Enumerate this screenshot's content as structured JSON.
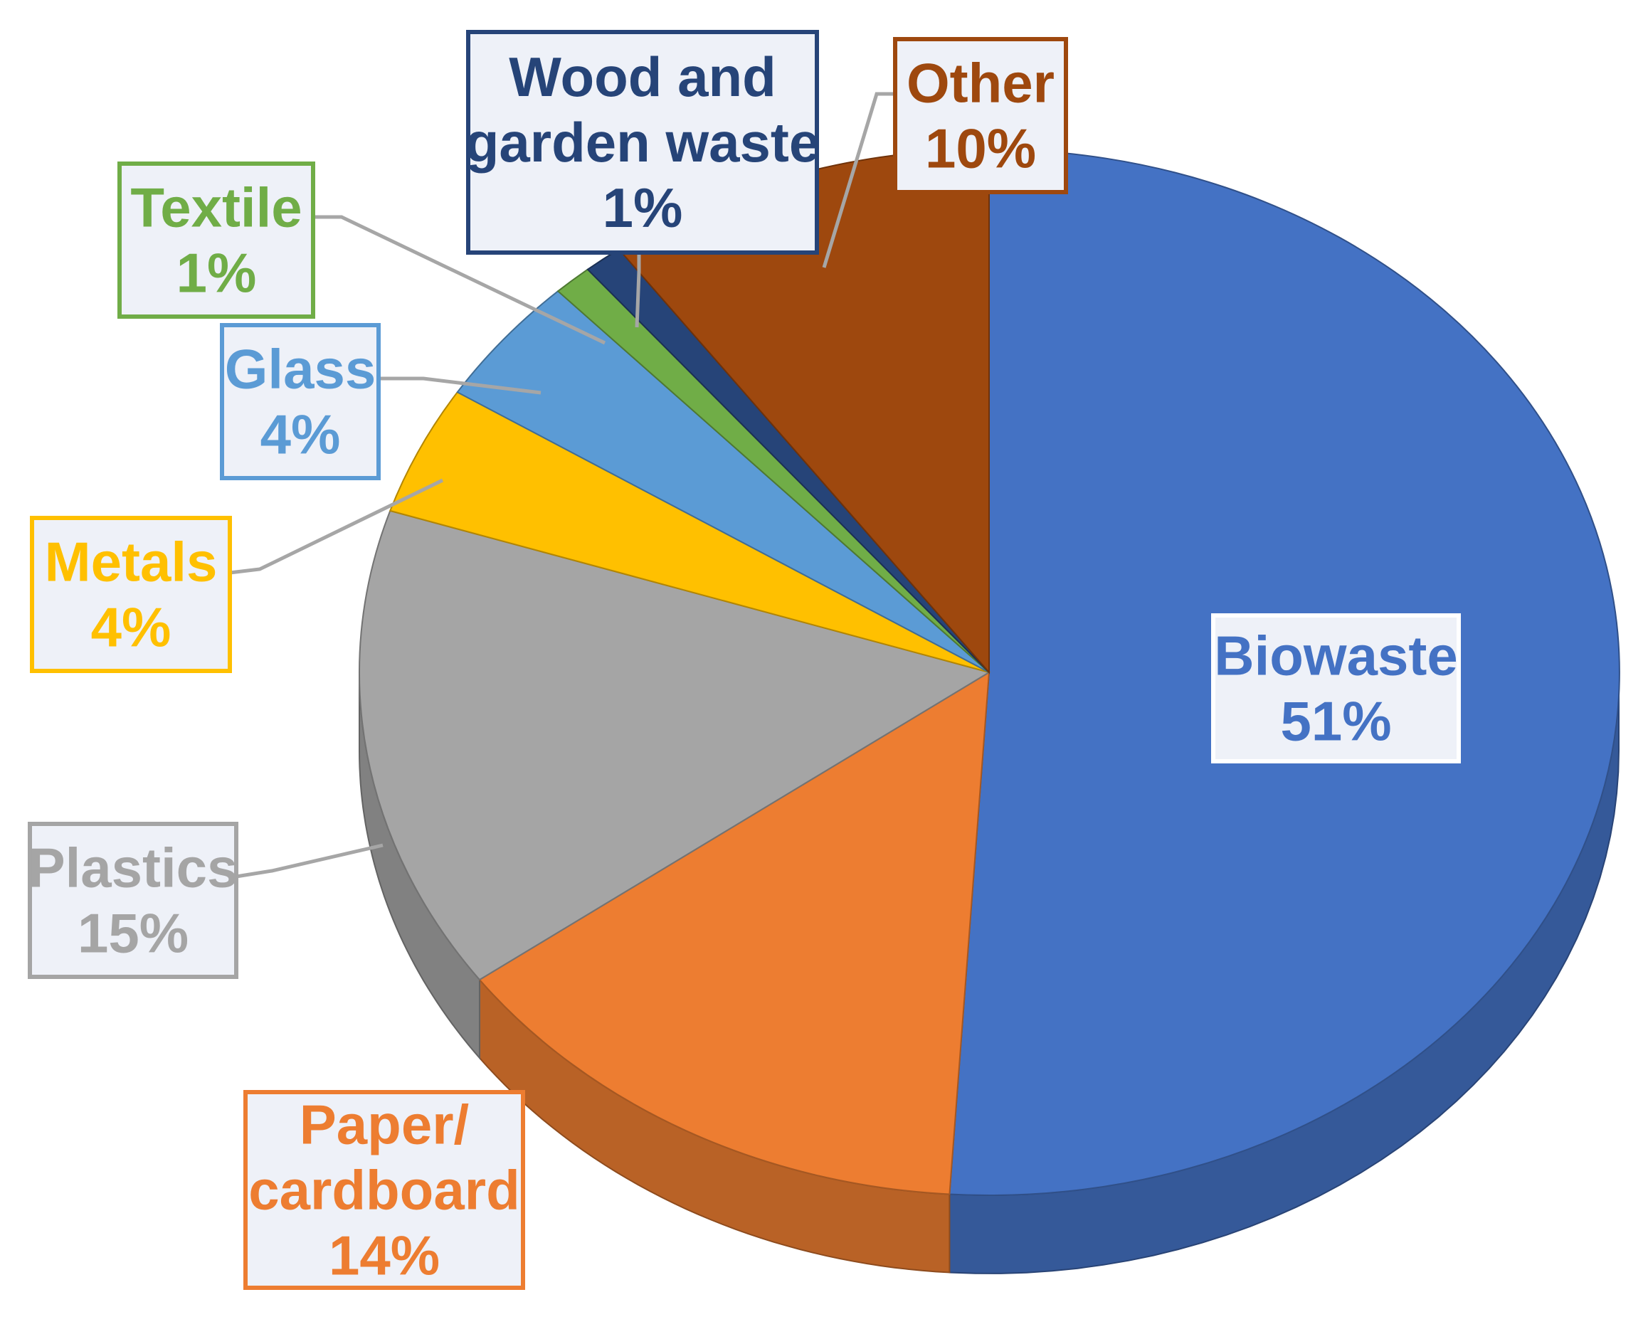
{
  "chart_data": {
    "type": "pie",
    "title": "",
    "style": "3d-tilted",
    "slices": [
      {
        "name": "Biowaste",
        "value": 51,
        "label": "51%",
        "color": "#4472c4",
        "text_color": "#4472c4"
      },
      {
        "name": "Paper/ cardboard",
        "value": 14,
        "label": "14%",
        "color": "#ed7d31",
        "text_color": "#ed7d31"
      },
      {
        "name": "Plastics",
        "value": 15,
        "label": "15%",
        "color": "#a5a5a5",
        "text_color": "#a5a5a5"
      },
      {
        "name": "Metals",
        "value": 4,
        "label": "4%",
        "color": "#ffc000",
        "text_color": "#ffc000"
      },
      {
        "name": "Glass",
        "value": 4,
        "label": "4%",
        "color": "#5b9bd5",
        "text_color": "#5b9bd5"
      },
      {
        "name": "Textile",
        "value": 1,
        "label": "1%",
        "color": "#70ad47",
        "text_color": "#70ad47"
      },
      {
        "name": "Wood and garden waste",
        "value": 1,
        "label": "1%",
        "color": "#264478",
        "text_color": "#264478"
      },
      {
        "name": "Other",
        "value": 10,
        "label": "10%",
        "color": "#9e480e",
        "text_color": "#9e480e"
      }
    ],
    "label_lines": [
      [
        "Biowaste",
        "51%"
      ],
      [
        "Paper/",
        "cardboard",
        "14%"
      ],
      [
        "Plastics",
        "15%"
      ],
      [
        "Metals",
        "4%"
      ],
      [
        "Glass",
        "4%"
      ],
      [
        "Textile",
        "1%"
      ],
      [
        "Wood and",
        "garden waste",
        "1%"
      ],
      [
        "Other",
        "10%"
      ]
    ]
  }
}
